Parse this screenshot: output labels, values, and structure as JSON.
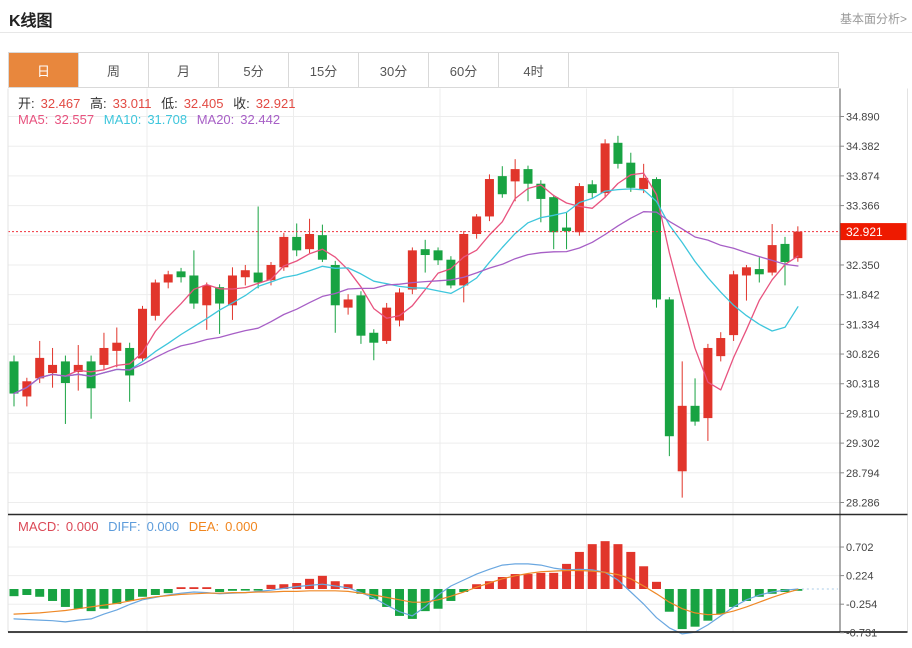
{
  "header": {
    "title": "K线图",
    "link": "基本面分析>"
  },
  "tabs": {
    "items": [
      "日",
      "周",
      "月",
      "5分",
      "15分",
      "30分",
      "60分",
      "4时"
    ],
    "active_index": 0
  },
  "quote": {
    "open_label": "开:",
    "open": "32.467",
    "high_label": "高:",
    "high": "33.011",
    "low_label": "低:",
    "low": "32.405",
    "close_label": "收:",
    "close": "32.921"
  },
  "ma_legend": {
    "ma5_label": "MA5:",
    "ma5": "32.557",
    "ma10_label": "MA10:",
    "ma10": "31.708",
    "ma20_label": "MA20:",
    "ma20": "32.442"
  },
  "macd_legend": {
    "macd_label": "MACD:",
    "macd": "0.000",
    "diff_label": "DIFF:",
    "diff": "0.000",
    "dea_label": "DEA:",
    "dea": "0.000"
  },
  "colors": {
    "up": "#e1352b",
    "down": "#18a342",
    "ma5_line": "#e8537f",
    "ma10_line": "#3ec6dc",
    "ma20_line": "#a75fc6",
    "diff_line": "#6aa7e0",
    "dea_line": "#ef8927",
    "current_price_line": "#f0323c",
    "badge_bg": "#ee1a00",
    "badge_text": "#ffffff",
    "grid": "#ededed",
    "axis_text": "#444444",
    "frame": "#2b2b2b",
    "tab_active_bg": "#e8873d",
    "value_red": "#e24a43"
  },
  "chart_data": {
    "type": "candlestick",
    "title": "K线图 日线 (daily K-line with MA5/MA10/MA20 overlays and MACD sub-chart)",
    "current_price": 32.921,
    "current_price_label": "32.921",
    "price_axis": {
      "labels": [
        "34.890",
        "34.382",
        "33.874",
        "33.366",
        "32.350",
        "31.842",
        "31.334",
        "30.826",
        "30.318",
        "29.810",
        "29.302",
        "28.794",
        "28.286"
      ],
      "values": [
        34.89,
        34.382,
        33.874,
        33.366,
        32.35,
        31.842,
        31.334,
        30.826,
        30.318,
        29.81,
        29.302,
        28.794,
        28.286
      ],
      "grid_values": [
        34.89,
        34.382,
        33.874,
        33.366,
        32.858,
        32.35,
        31.842,
        31.334,
        30.826,
        30.318,
        29.81,
        29.302,
        28.794,
        28.286
      ],
      "min": 28.286,
      "max": 34.89
    },
    "overlays": [
      "MA5",
      "MA10",
      "MA20"
    ],
    "candles_format": [
      "open",
      "high",
      "low",
      "close"
    ],
    "candles": [
      [
        30.7,
        30.8,
        29.93,
        30.15
      ],
      [
        30.1,
        30.42,
        29.93,
        30.36
      ],
      [
        30.41,
        31.05,
        30.33,
        30.76
      ],
      [
        30.5,
        30.93,
        30.25,
        30.64
      ],
      [
        30.7,
        30.8,
        29.63,
        30.33
      ],
      [
        30.52,
        30.98,
        30.2,
        30.64
      ],
      [
        30.7,
        30.8,
        29.72,
        30.24
      ],
      [
        30.64,
        31.19,
        30.55,
        30.93
      ],
      [
        30.88,
        31.28,
        30.6,
        31.02
      ],
      [
        30.93,
        31.02,
        30.01,
        30.46
      ],
      [
        30.75,
        31.65,
        30.7,
        31.6
      ],
      [
        31.48,
        32.1,
        31.4,
        32.05
      ],
      [
        32.05,
        32.25,
        31.95,
        32.19
      ],
      [
        32.24,
        32.3,
        32.05,
        32.14
      ],
      [
        32.17,
        32.6,
        31.6,
        31.69
      ],
      [
        31.66,
        32.05,
        31.24,
        32.0
      ],
      [
        31.97,
        32.02,
        31.17,
        31.69
      ],
      [
        31.66,
        32.31,
        31.41,
        32.17
      ],
      [
        32.14,
        32.35,
        32.0,
        32.26
      ],
      [
        32.22,
        33.35,
        31.95,
        32.05
      ],
      [
        32.09,
        32.4,
        32.0,
        32.35
      ],
      [
        32.31,
        32.9,
        32.25,
        32.83
      ],
      [
        32.83,
        33.06,
        32.5,
        32.6
      ],
      [
        32.62,
        33.14,
        32.55,
        32.88
      ],
      [
        32.86,
        33.04,
        32.4,
        32.44
      ],
      [
        32.35,
        32.42,
        31.19,
        31.66
      ],
      [
        31.62,
        31.85,
        31.5,
        31.76
      ],
      [
        31.83,
        31.9,
        31.0,
        31.14
      ],
      [
        31.19,
        31.25,
        30.72,
        31.02
      ],
      [
        31.05,
        31.7,
        31.0,
        31.62
      ],
      [
        31.4,
        31.95,
        31.3,
        31.88
      ],
      [
        31.93,
        32.65,
        31.85,
        32.6
      ],
      [
        32.62,
        32.78,
        32.22,
        32.52
      ],
      [
        32.6,
        32.65,
        32.35,
        32.43
      ],
      [
        32.44,
        32.5,
        31.95,
        32.0
      ],
      [
        32.0,
        32.93,
        31.71,
        32.88
      ],
      [
        32.88,
        33.22,
        32.8,
        33.18
      ],
      [
        33.18,
        33.9,
        33.1,
        33.82
      ],
      [
        33.87,
        34.04,
        33.5,
        33.56
      ],
      [
        33.78,
        34.16,
        33.44,
        33.99
      ],
      [
        33.99,
        34.05,
        33.44,
        33.74
      ],
      [
        33.74,
        33.8,
        33.08,
        33.48
      ],
      [
        33.51,
        33.55,
        32.62,
        32.91
      ],
      [
        32.99,
        33.25,
        32.62,
        32.93
      ],
      [
        32.91,
        33.75,
        32.85,
        33.7
      ],
      [
        33.73,
        33.8,
        33.5,
        33.58
      ],
      [
        33.58,
        34.5,
        33.5,
        34.43
      ],
      [
        34.44,
        34.56,
        34.0,
        34.08
      ],
      [
        34.1,
        34.27,
        33.6,
        33.67
      ],
      [
        33.65,
        34.08,
        33.58,
        33.84
      ],
      [
        33.82,
        33.85,
        31.62,
        31.76
      ],
      [
        31.76,
        31.8,
        29.08,
        29.42
      ],
      [
        28.82,
        30.7,
        28.37,
        29.94
      ],
      [
        29.94,
        30.41,
        29.6,
        29.67
      ],
      [
        29.73,
        31.0,
        29.34,
        30.93
      ],
      [
        30.79,
        31.2,
        30.7,
        31.1
      ],
      [
        31.15,
        32.25,
        31.05,
        32.19
      ],
      [
        32.17,
        32.35,
        31.74,
        32.31
      ],
      [
        32.28,
        32.48,
        32.05,
        32.19
      ],
      [
        32.22,
        33.05,
        32.17,
        32.69
      ],
      [
        32.71,
        32.83,
        32.0,
        32.4
      ],
      [
        32.467,
        33.011,
        32.405,
        32.921
      ]
    ],
    "macd": {
      "axis_labels": [
        "0.702",
        "0.224",
        "-0.254",
        "-0.731"
      ],
      "axis_values": [
        0.702,
        0.224,
        -0.254,
        -0.731
      ],
      "histogram": [
        -0.12,
        -0.1,
        -0.13,
        -0.2,
        -0.3,
        -0.33,
        -0.37,
        -0.33,
        -0.25,
        -0.2,
        -0.13,
        -0.1,
        -0.07,
        0.03,
        0.03,
        0.03,
        -0.05,
        -0.03,
        -0.02,
        -0.02,
        0.07,
        0.08,
        0.1,
        0.17,
        0.22,
        0.13,
        0.08,
        -0.08,
        -0.17,
        -0.3,
        -0.45,
        -0.5,
        -0.37,
        -0.33,
        -0.2,
        -0.05,
        0.08,
        0.13,
        0.2,
        0.25,
        0.25,
        0.27,
        0.27,
        0.42,
        0.62,
        0.75,
        0.8,
        0.75,
        0.62,
        0.38,
        0.12,
        -0.38,
        -0.67,
        -0.63,
        -0.53,
        -0.42,
        -0.3,
        -0.2,
        -0.13,
        -0.08,
        -0.05,
        -0.03
      ],
      "diff": [
        -0.5,
        -0.51,
        -0.52,
        -0.53,
        -0.55,
        -0.52,
        -0.5,
        -0.42,
        -0.35,
        -0.26,
        -0.18,
        -0.14,
        -0.1,
        -0.07,
        -0.05,
        -0.06,
        -0.08,
        -0.07,
        -0.06,
        -0.04,
        -0.02,
        0.01,
        0.04,
        0.06,
        0.08,
        0.05,
        0.02,
        -0.06,
        -0.15,
        -0.27,
        -0.38,
        -0.45,
        -0.3,
        -0.1,
        0.05,
        0.15,
        0.25,
        0.33,
        0.4,
        0.42,
        0.42,
        0.4,
        0.35,
        0.32,
        0.33,
        0.32,
        0.28,
        0.15,
        -0.05,
        -0.25,
        -0.48,
        -0.65,
        -0.75,
        -0.72,
        -0.6,
        -0.45,
        -0.3,
        -0.18,
        -0.1,
        -0.05,
        -0.02,
        0.0
      ],
      "dea": [
        -0.42,
        -0.41,
        -0.4,
        -0.38,
        -0.36,
        -0.33,
        -0.3,
        -0.27,
        -0.24,
        -0.2,
        -0.16,
        -0.13,
        -0.11,
        -0.09,
        -0.08,
        -0.07,
        -0.07,
        -0.06,
        -0.06,
        -0.05,
        -0.05,
        -0.04,
        -0.04,
        -0.03,
        -0.03,
        -0.03,
        -0.04,
        -0.07,
        -0.1,
        -0.14,
        -0.18,
        -0.22,
        -0.22,
        -0.18,
        -0.12,
        -0.05,
        0.03,
        0.1,
        0.17,
        0.22,
        0.26,
        0.29,
        0.3,
        0.31,
        0.31,
        0.3,
        0.28,
        0.24,
        0.17,
        0.05,
        -0.08,
        -0.22,
        -0.33,
        -0.4,
        -0.43,
        -0.42,
        -0.37,
        -0.3,
        -0.22,
        -0.14,
        -0.07,
        -0.01
      ]
    }
  }
}
